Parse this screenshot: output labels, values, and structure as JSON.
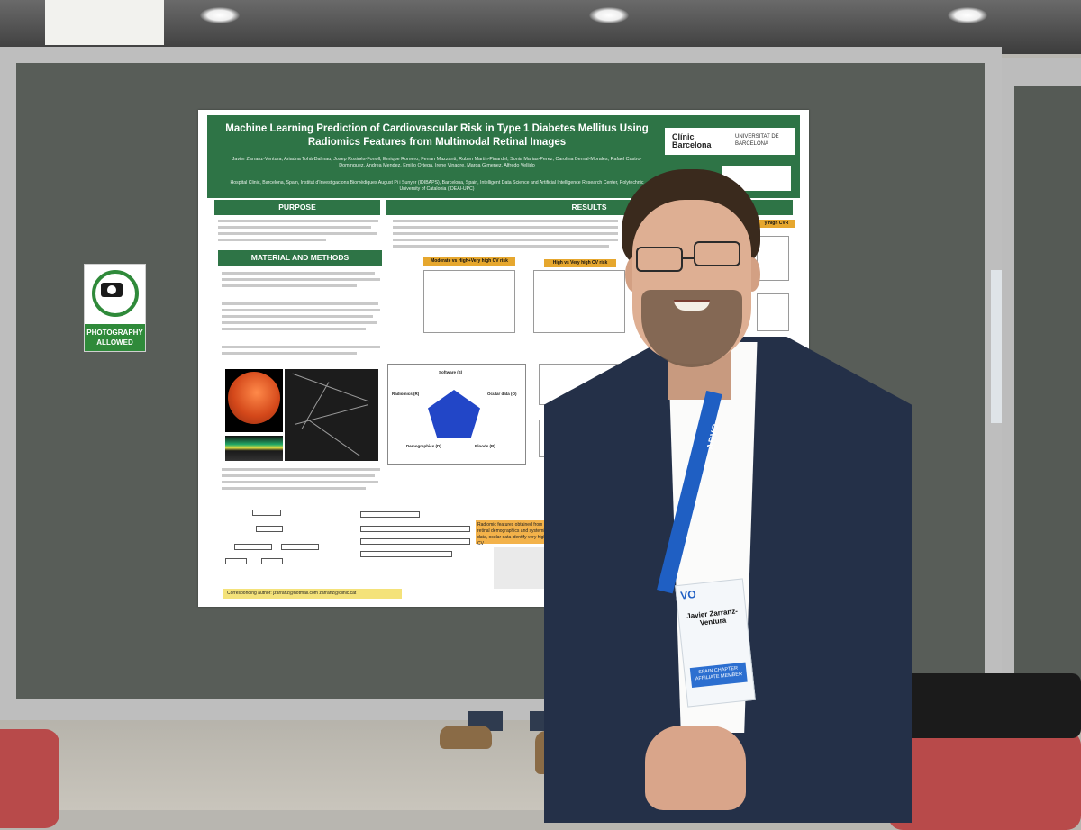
{
  "scene": {
    "photo_sign": {
      "label": "PHOTOGRAPHY ALLOWED",
      "icon": "camera-icon"
    },
    "poster": {
      "title": "Machine Learning Prediction of Cardiovascular Risk in Type 1 Diabetes Mellitus Using Radiomics Features from Multimodal Retinal Images",
      "authors": "Javier Zarranz-Ventura, Ariadna Tohà-Dalmau, Josep Rosinés-Fonoll, Enrique Romero, Ferran Mazzanti, Ruben Martin-Pinardel, Sonia Marias-Perez, Carolina Bernal-Morales, Rafael Castro-Dominguez, Andrea Mendez, Emilio Ortega, Irene Vinagre, Marga Gimenez, Alfredo Vellido",
      "affiliations": "Hospital Clinic, Barcelona, Spain, Institut d'Investigacions Biomèdiques August Pi i Sunyer (IDIBAPS), Barcelona, Spain, Intelligent Data Science and Artificial Intelligence Research Center, Polytechnic University of Catalonia (IDEAI-UPC)",
      "logos": {
        "clinic": "Clínic Barcelona",
        "ub": "UNIVERSITAT DE BARCELONA"
      },
      "sections": {
        "purpose": "PURPOSE",
        "methods": "MATERIAL AND METHODS",
        "results": "RESULTS"
      },
      "chart_tags": {
        "left": "Moderate vs High+Very high CV risk",
        "right": "High vs Very high CV risk",
        "far_right": "y high CVR"
      },
      "pentagon_labels": {
        "top": "Software (S)",
        "left": "Radiomics (R)",
        "right": "Ocular data (O)",
        "bottom_left": "Demographics (D)",
        "bottom_right": "Bloods (B)"
      },
      "corresponding_author": "Corresponding author:  jzarranz@hotmail.com  zarranz@clinic.cat",
      "orange_box_text": "Radiomic features obtained from retinal demographics and systemic data, ocular data identify very high CV"
    },
    "badge": {
      "name": "Javier Zarranz-Ventura",
      "member": "SPAIN CHAPTER AFFILIATE MEMBER",
      "org": "VO"
    },
    "lanyard_text": "ARVO"
  },
  "colors": {
    "poster_green": "#2e7446",
    "tag_orange": "#e6a72e",
    "board_grey": "#585d58",
    "lanyard_blue": "#1f5fc3"
  }
}
